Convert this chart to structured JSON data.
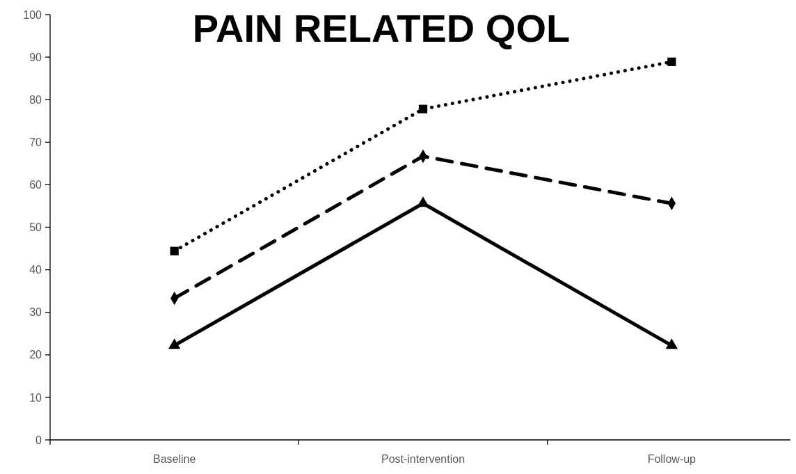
{
  "chart_data": {
    "type": "line",
    "title": "PAIN RELATED QOL",
    "categories": [
      "Baseline",
      "Post-intervention",
      "Follow-up"
    ],
    "series": [
      {
        "color": "#000000",
        "values": [
          44.4,
          77.8,
          88.9
        ],
        "line_style": "dotted",
        "marker": "square"
      },
      {
        "color": "#000000",
        "values": [
          33.3,
          66.7,
          55.6
        ],
        "line_style": "dashed",
        "marker": "diamond"
      },
      {
        "color": "#000000",
        "values": [
          22.2,
          55.6,
          22.2
        ],
        "line_style": "solid",
        "marker": "triangle"
      }
    ],
    "ylim": [
      0,
      100
    ],
    "yticks": [
      0,
      10,
      20,
      30,
      40,
      50,
      60,
      70,
      80,
      90,
      100
    ]
  }
}
